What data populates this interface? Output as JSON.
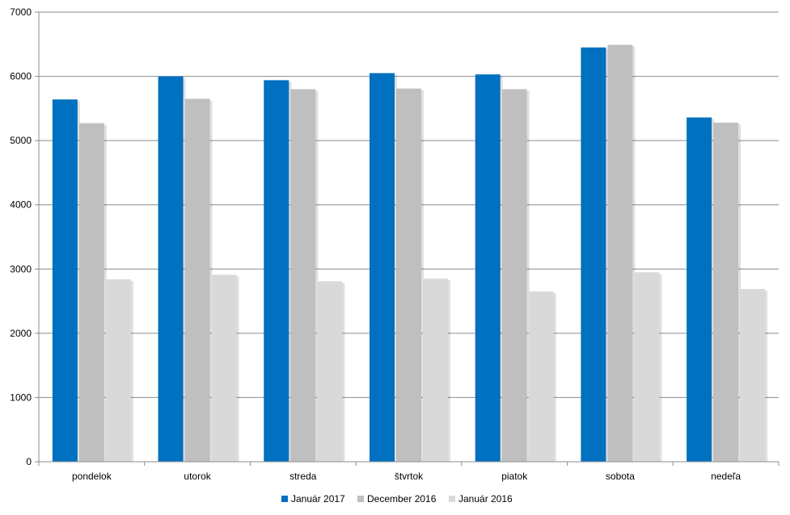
{
  "chart_data": {
    "type": "bar",
    "categories": [
      "pondelok",
      "utorok",
      "streda",
      "štvrtok",
      "piatok",
      "sobota",
      "nedeľa"
    ],
    "series": [
      {
        "name": "Január 2017",
        "values": [
          5640,
          6000,
          5940,
          6050,
          6030,
          6450,
          5360
        ]
      },
      {
        "name": "December 2016",
        "values": [
          5270,
          5650,
          5800,
          5810,
          5800,
          6490,
          5280
        ]
      },
      {
        "name": "Január 2016",
        "values": [
          2840,
          2910,
          2810,
          2850,
          2650,
          2950,
          2690
        ]
      }
    ],
    "ylim": [
      0,
      7000
    ],
    "yticks": [
      0,
      1000,
      2000,
      3000,
      4000,
      5000,
      6000,
      7000
    ],
    "grid": true,
    "legend_position": "bottom",
    "colors": [
      "#0070c0",
      "#bfbfbf",
      "#d9d9d9"
    ]
  }
}
